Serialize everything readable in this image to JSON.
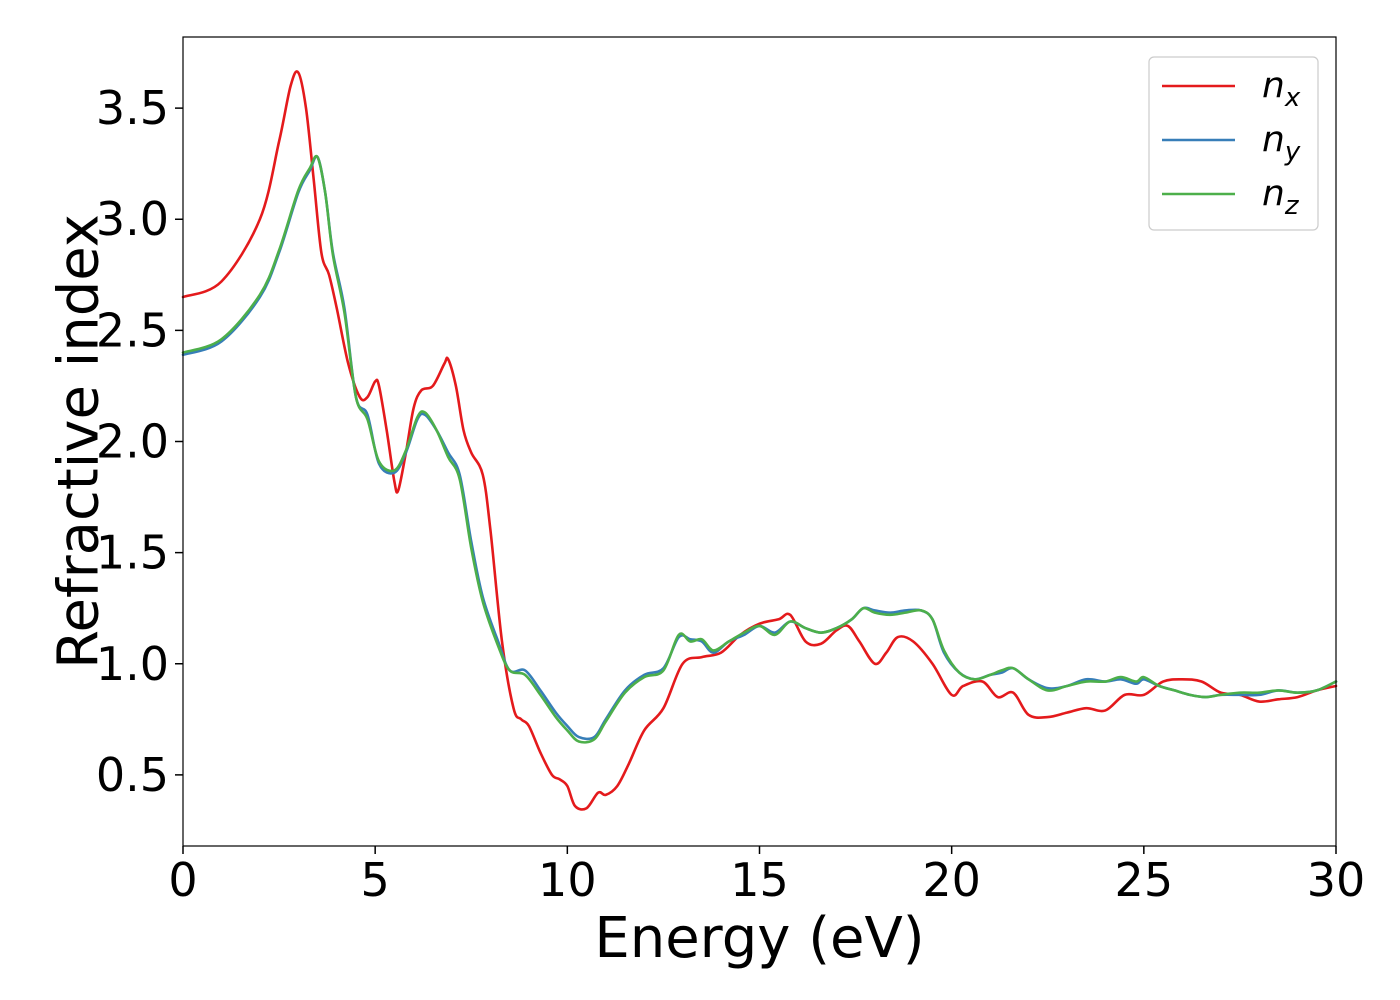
{
  "chart_data": {
    "type": "line",
    "title": "",
    "xlabel": "Energy (eV)",
    "ylabel": "Refractive index",
    "xlim": [
      0,
      30
    ],
    "ylim": [
      0.18,
      3.82
    ],
    "xticks": [
      0,
      5,
      10,
      15,
      20,
      25,
      30
    ],
    "xtick_labels": [
      "0",
      "5",
      "10",
      "15",
      "20",
      "25",
      "30"
    ],
    "yticks": [
      0.5,
      1.0,
      1.5,
      2.0,
      2.5,
      3.0,
      3.5
    ],
    "ytick_labels": [
      "0.5",
      "1.0",
      "1.5",
      "2.0",
      "2.5",
      "3.0",
      "3.5"
    ],
    "grid": false,
    "legend_position": "top-right",
    "series": [
      {
        "name": "n_x",
        "label_base": "n",
        "label_sub": "x",
        "color": "#e41a1c",
        "x": [
          0,
          1,
          2,
          2.5,
          2.8,
          3.0,
          3.2,
          3.4,
          3.6,
          3.8,
          4.0,
          4.3,
          4.6,
          4.8,
          5.0,
          5.1,
          5.3,
          5.5,
          5.6,
          5.8,
          6.0,
          6.2,
          6.5,
          6.8,
          6.9,
          7.1,
          7.3,
          7.5,
          7.8,
          8.0,
          8.3,
          8.6,
          8.8,
          9.0,
          9.3,
          9.6,
          9.8,
          10.0,
          10.2,
          10.5,
          10.8,
          11.0,
          11.3,
          11.6,
          12.0,
          12.5,
          13.0,
          13.5,
          14.0,
          14.5,
          15.0,
          15.5,
          15.8,
          16.2,
          16.6,
          17.0,
          17.3,
          17.6,
          18.0,
          18.3,
          18.6,
          19.0,
          19.5,
          20.0,
          20.3,
          20.8,
          21.2,
          21.6,
          22.0,
          22.5,
          23.0,
          23.5,
          24.0,
          24.5,
          25.0,
          25.5,
          26.0,
          26.5,
          27.0,
          27.5,
          28.0,
          28.5,
          29.0,
          29.5,
          30.0
        ],
        "y": [
          2.65,
          2.72,
          3.0,
          3.35,
          3.6,
          3.66,
          3.5,
          3.18,
          2.85,
          2.75,
          2.6,
          2.35,
          2.2,
          2.2,
          2.27,
          2.25,
          2.05,
          1.82,
          1.78,
          1.95,
          2.15,
          2.23,
          2.25,
          2.35,
          2.37,
          2.25,
          2.05,
          1.95,
          1.85,
          1.6,
          1.1,
          0.8,
          0.75,
          0.72,
          0.6,
          0.5,
          0.48,
          0.45,
          0.36,
          0.35,
          0.42,
          0.41,
          0.45,
          0.55,
          0.7,
          0.8,
          1.0,
          1.03,
          1.05,
          1.13,
          1.18,
          1.2,
          1.22,
          1.1,
          1.09,
          1.15,
          1.17,
          1.1,
          1.0,
          1.05,
          1.12,
          1.1,
          1.0,
          0.86,
          0.9,
          0.92,
          0.85,
          0.87,
          0.77,
          0.76,
          0.78,
          0.8,
          0.79,
          0.86,
          0.86,
          0.92,
          0.93,
          0.92,
          0.87,
          0.86,
          0.83,
          0.84,
          0.85,
          0.88,
          0.9
        ]
      },
      {
        "name": "n_y",
        "label_base": "n",
        "label_sub": "y",
        "color": "#377eb8",
        "x": [
          0,
          1,
          2,
          2.5,
          3.0,
          3.3,
          3.5,
          3.7,
          3.9,
          4.2,
          4.5,
          4.8,
          5.1,
          5.5,
          5.8,
          6.1,
          6.3,
          6.6,
          6.9,
          7.2,
          7.5,
          7.8,
          8.2,
          8.5,
          8.9,
          9.3,
          9.7,
          10.0,
          10.3,
          10.7,
          11.0,
          11.5,
          12.0,
          12.5,
          12.9,
          13.2,
          13.5,
          13.8,
          14.2,
          14.6,
          15.0,
          15.4,
          15.8,
          16.2,
          16.6,
          17.0,
          17.4,
          17.7,
          18.0,
          18.4,
          18.8,
          19.2,
          19.5,
          19.8,
          20.2,
          20.6,
          21.0,
          21.3,
          21.6,
          22.0,
          22.5,
          23.0,
          23.5,
          24.0,
          24.4,
          24.8,
          25.0,
          25.4,
          25.8,
          26.2,
          26.6,
          27.0,
          27.5,
          28.0,
          28.5,
          29.0,
          29.5,
          30.0
        ],
        "y": [
          2.39,
          2.45,
          2.65,
          2.85,
          3.12,
          3.22,
          3.28,
          3.12,
          2.85,
          2.6,
          2.2,
          2.12,
          1.9,
          1.86,
          1.95,
          2.1,
          2.12,
          2.05,
          1.95,
          1.85,
          1.55,
          1.3,
          1.1,
          0.97,
          0.97,
          0.88,
          0.78,
          0.72,
          0.67,
          0.67,
          0.75,
          0.88,
          0.95,
          0.98,
          1.12,
          1.11,
          1.1,
          1.05,
          1.1,
          1.13,
          1.17,
          1.14,
          1.19,
          1.16,
          1.14,
          1.16,
          1.2,
          1.25,
          1.24,
          1.23,
          1.24,
          1.24,
          1.2,
          1.05,
          0.96,
          0.93,
          0.95,
          0.96,
          0.98,
          0.93,
          0.89,
          0.9,
          0.93,
          0.92,
          0.93,
          0.91,
          0.93,
          0.9,
          0.88,
          0.86,
          0.85,
          0.86,
          0.86,
          0.86,
          0.88,
          0.87,
          0.88,
          0.92
        ]
      },
      {
        "name": "n_z",
        "label_base": "n",
        "label_sub": "z",
        "color": "#4daf4a",
        "x": [
          0,
          1,
          2,
          2.5,
          3.0,
          3.3,
          3.5,
          3.7,
          3.9,
          4.2,
          4.5,
          4.8,
          5.1,
          5.5,
          5.8,
          6.1,
          6.3,
          6.6,
          6.9,
          7.2,
          7.5,
          7.8,
          8.2,
          8.5,
          8.9,
          9.3,
          9.7,
          10.0,
          10.3,
          10.7,
          11.0,
          11.5,
          12.0,
          12.5,
          12.9,
          13.2,
          13.5,
          13.8,
          14.2,
          14.6,
          15.0,
          15.4,
          15.8,
          16.2,
          16.6,
          17.0,
          17.4,
          17.7,
          18.0,
          18.4,
          18.8,
          19.2,
          19.5,
          19.8,
          20.2,
          20.6,
          21.0,
          21.3,
          21.6,
          22.0,
          22.5,
          23.0,
          23.5,
          24.0,
          24.4,
          24.8,
          25.0,
          25.4,
          25.8,
          26.2,
          26.6,
          27.0,
          27.5,
          28.0,
          28.5,
          29.0,
          29.5,
          30.0
        ],
        "y": [
          2.4,
          2.46,
          2.66,
          2.86,
          3.13,
          3.23,
          3.28,
          3.12,
          2.84,
          2.58,
          2.2,
          2.1,
          1.91,
          1.87,
          1.96,
          2.11,
          2.13,
          2.05,
          1.93,
          1.83,
          1.52,
          1.28,
          1.08,
          0.97,
          0.95,
          0.86,
          0.76,
          0.7,
          0.65,
          0.66,
          0.74,
          0.87,
          0.94,
          0.97,
          1.13,
          1.1,
          1.11,
          1.06,
          1.1,
          1.14,
          1.17,
          1.13,
          1.19,
          1.16,
          1.14,
          1.16,
          1.2,
          1.25,
          1.23,
          1.22,
          1.23,
          1.24,
          1.2,
          1.06,
          0.96,
          0.93,
          0.95,
          0.97,
          0.98,
          0.93,
          0.88,
          0.9,
          0.92,
          0.92,
          0.94,
          0.92,
          0.94,
          0.9,
          0.88,
          0.86,
          0.85,
          0.86,
          0.87,
          0.87,
          0.88,
          0.87,
          0.88,
          0.92
        ]
      }
    ]
  }
}
